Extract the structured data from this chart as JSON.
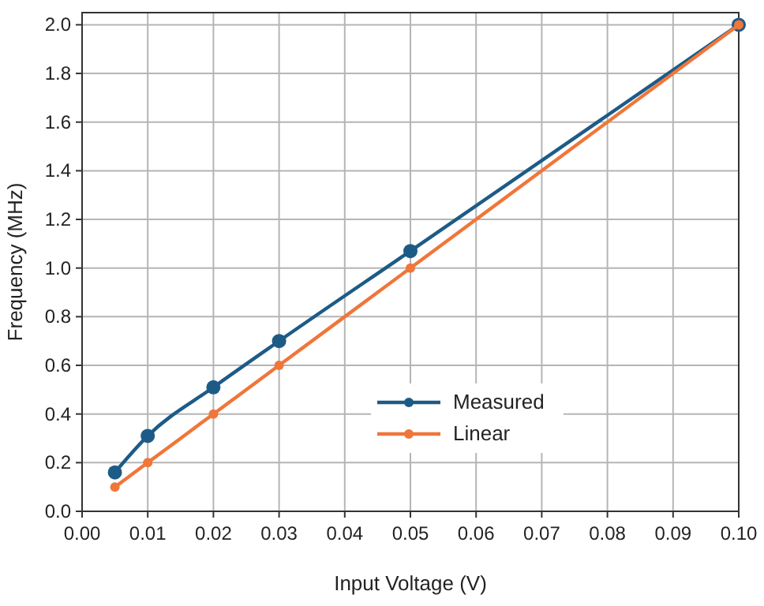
{
  "chart_data": {
    "type": "line",
    "xlabel": "Input Voltage (V)",
    "ylabel": "Frequency (MHz)",
    "series": [
      {
        "name": "Measured",
        "color": "#1d5b87",
        "x": [
          0.005,
          0.01,
          0.02,
          0.03,
          0.05,
          0.1
        ],
        "values": [
          0.16,
          0.31,
          0.51,
          0.7,
          1.07,
          2.0
        ]
      },
      {
        "name": "Linear",
        "color": "#f0763a",
        "x": [
          0.005,
          0.01,
          0.02,
          0.03,
          0.05,
          0.1
        ],
        "values": [
          0.1,
          0.2,
          0.4,
          0.6,
          1.0,
          2.0
        ]
      }
    ],
    "xlim": [
      0,
      0.1
    ],
    "ylim": [
      0,
      2.05
    ],
    "xticks": [
      {
        "value": 0,
        "label": "0.00"
      },
      {
        "value": 0.01,
        "label": "0.01"
      },
      {
        "value": 0.02,
        "label": "0.02"
      },
      {
        "value": 0.03,
        "label": "0.03"
      },
      {
        "value": 0.04,
        "label": "0.04"
      },
      {
        "value": 0.05,
        "label": "0.05"
      },
      {
        "value": 0.06,
        "label": "0.06"
      },
      {
        "value": 0.07,
        "label": "0.07"
      },
      {
        "value": 0.08,
        "label": "0.08"
      },
      {
        "value": 0.09,
        "label": "0.09"
      },
      {
        "value": 0.1,
        "label": "0.10"
      }
    ],
    "yticks": [
      {
        "value": 0,
        "label": "0.0"
      },
      {
        "value": 0.2,
        "label": "0.2"
      },
      {
        "value": 0.4,
        "label": "0.4"
      },
      {
        "value": 0.6,
        "label": "0.6"
      },
      {
        "value": 0.8,
        "label": "0.8"
      },
      {
        "value": 1.0,
        "label": "1.0"
      },
      {
        "value": 1.2,
        "label": "1.2"
      },
      {
        "value": 1.4,
        "label": "1.4"
      },
      {
        "value": 1.6,
        "label": "1.6"
      },
      {
        "value": 1.8,
        "label": "1.8"
      },
      {
        "value": 2.0,
        "label": "2.0"
      }
    ],
    "grid": true,
    "legend": "bottom",
    "marker": "circle",
    "line_style": "solid"
  }
}
